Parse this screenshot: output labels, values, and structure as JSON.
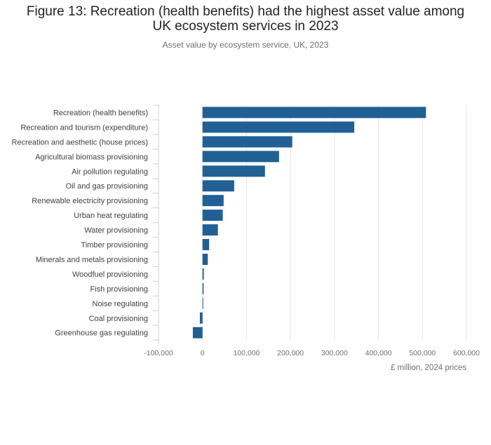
{
  "chart_data": {
    "type": "bar",
    "orientation": "horizontal",
    "title": "Figure 13: Recreation (health benefits) had the highest asset value among UK ecosystem services in 2023",
    "title_line1": "Figure 13: Recreation (health benefits) had the highest asset value among",
    "title_line2": "UK ecosystem services in 2023",
    "subtitle": "Asset value by ecosystem service, UK, 2023",
    "xlabel": "£ million, 2024 prices",
    "ylabel": "",
    "xlim": [
      -100000,
      600000
    ],
    "xticks": [
      -100000,
      0,
      100000,
      200000,
      300000,
      400000,
      500000,
      600000
    ],
    "xtick_labels": [
      "-100,000",
      "0",
      "100,000",
      "200,000",
      "300,000",
      "400,000",
      "500,000",
      "600,000"
    ],
    "grid": true,
    "bar_color": "#206095",
    "categories": [
      "Recreation (health benefits)",
      "Recreation and tourism (expenditure)",
      "Recreation and aesthetic (house prices)",
      "Agricultural biomass provisioning",
      "Air pollution regulating",
      "Oil and gas provisioning",
      "Renewable electricity provisioning",
      "Urban heat regulating",
      "Water provisioning",
      "Timber provisioning",
      "Minerals and metals provisioning",
      "Woodfuel provisioning",
      "Fish provisioning",
      "Noise regulating",
      "Coal provisioning",
      "Greenhouse gas regulating"
    ],
    "values": [
      508000,
      345000,
      204000,
      174000,
      142000,
      72000,
      48000,
      46000,
      35000,
      15000,
      12000,
      3000,
      2500,
      300,
      -6000,
      -22000
    ]
  }
}
